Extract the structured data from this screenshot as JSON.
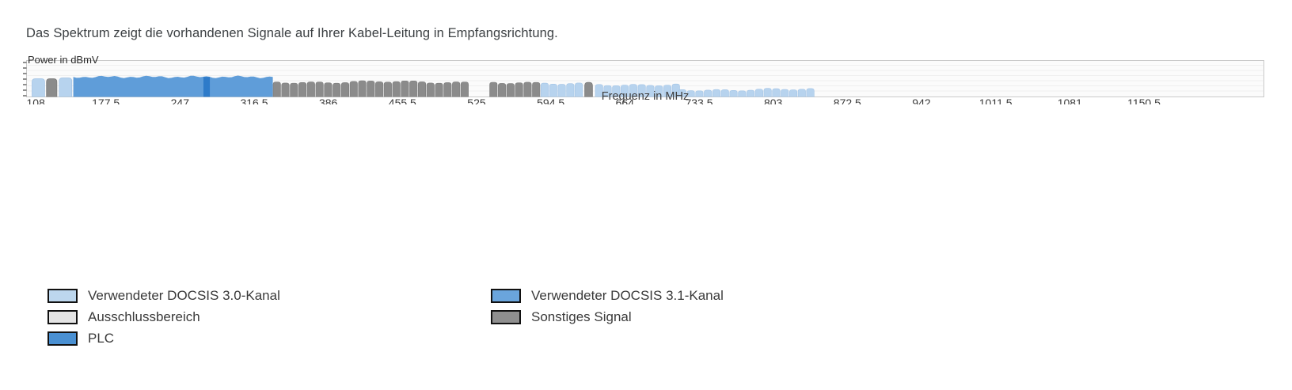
{
  "page": {
    "title": "Das Spektrum zeigt die vorhandenen Signale auf Ihrer Kabel-Leitung in Empfangsrichtung."
  },
  "chart_data": {
    "type": "area",
    "title": "",
    "xlabel": "Frequenz in MHz",
    "ylabel": "Power in dBmV",
    "x_range": [
      108,
      1263
    ],
    "x_ticks": [
      108,
      177.5,
      247,
      316.5,
      386,
      455.5,
      525,
      594.5,
      664,
      733.5,
      803,
      872.5,
      942,
      1011.5,
      1081,
      1150.5
    ],
    "y_ticks_unlabeled": 7,
    "grid": "horizontal-faint",
    "legend_position": "below-chart",
    "note": "power values are relative heights (0-1 of plot height); y-axis has unlabeled ticks only",
    "segments": [
      {
        "kind": "docsis30",
        "style": "hump",
        "f": [
          108,
          120.5
        ],
        "power": 0.5
      },
      {
        "kind": "sonstiges",
        "style": "hump",
        "f": [
          121.5,
          132
        ],
        "power": 0.5
      },
      {
        "kind": "docsis30",
        "style": "hump",
        "f": [
          133.5,
          146
        ],
        "power": 0.52
      },
      {
        "kind": "docsis31",
        "style": "block",
        "f": [
          147,
          334
        ],
        "power": 0.55
      },
      {
        "kind": "plc",
        "style": "plain",
        "f": [
          269,
          275
        ],
        "power": 0.55
      },
      {
        "kind": "sonstiges",
        "style": "channels",
        "f": [
          334,
          518
        ],
        "power": 0.41,
        "channel_mhz": 8
      },
      {
        "kind": "sonstiges",
        "style": "channels",
        "f": [
          537,
          585
        ],
        "power": 0.4,
        "channel_mhz": 8
      },
      {
        "kind": "docsis30",
        "style": "channels",
        "f": [
          585,
          625
        ],
        "power": 0.38,
        "channel_mhz": 8
      },
      {
        "kind": "sonstiges",
        "style": "hump",
        "f": [
          626,
          634
        ],
        "power": 0.4
      },
      {
        "kind": "docsis30",
        "style": "channels",
        "f": [
          636,
          714
        ],
        "power": 0.34,
        "channel_mhz": 8
      },
      {
        "kind": "docsis30",
        "style": "channels",
        "f": [
          714,
          843
        ],
        "power": 0.2,
        "channel_mhz": 8
      }
    ]
  },
  "colors": {
    "plot_bg": "#fbfbfb",
    "plot_border": "#c9c9c9",
    "grid_line": "#efefef",
    "axis_text": "#3b3b3b",
    "docsis30_fill": "#b7d3ee",
    "docsis30_stroke": "#a3c4e6",
    "docsis31_fill": "#5f9dd9",
    "plc_fill": "#2e7bc9",
    "sonstiges_fill": "#8b8b8b",
    "sonstiges_stroke": "#7c7c7c",
    "ausschluss_fill": "#e4e4e4"
  },
  "legend": {
    "items": [
      {
        "key": "docsis30",
        "label": "Verwendeter DOCSIS 3.0-Kanal",
        "color": "#bdd7ee"
      },
      {
        "key": "docsis31",
        "label": "Verwendeter DOCSIS 3.1-Kanal",
        "color": "#6aa5dc"
      },
      {
        "key": "ausschluss",
        "label": "Ausschlussbereich",
        "color": "#e4e4e4"
      },
      {
        "key": "sonstiges",
        "label": "Sonstiges Signal",
        "color": "#8f8f8f"
      },
      {
        "key": "plc",
        "label": "PLC",
        "color": "#4a90d2"
      }
    ]
  }
}
